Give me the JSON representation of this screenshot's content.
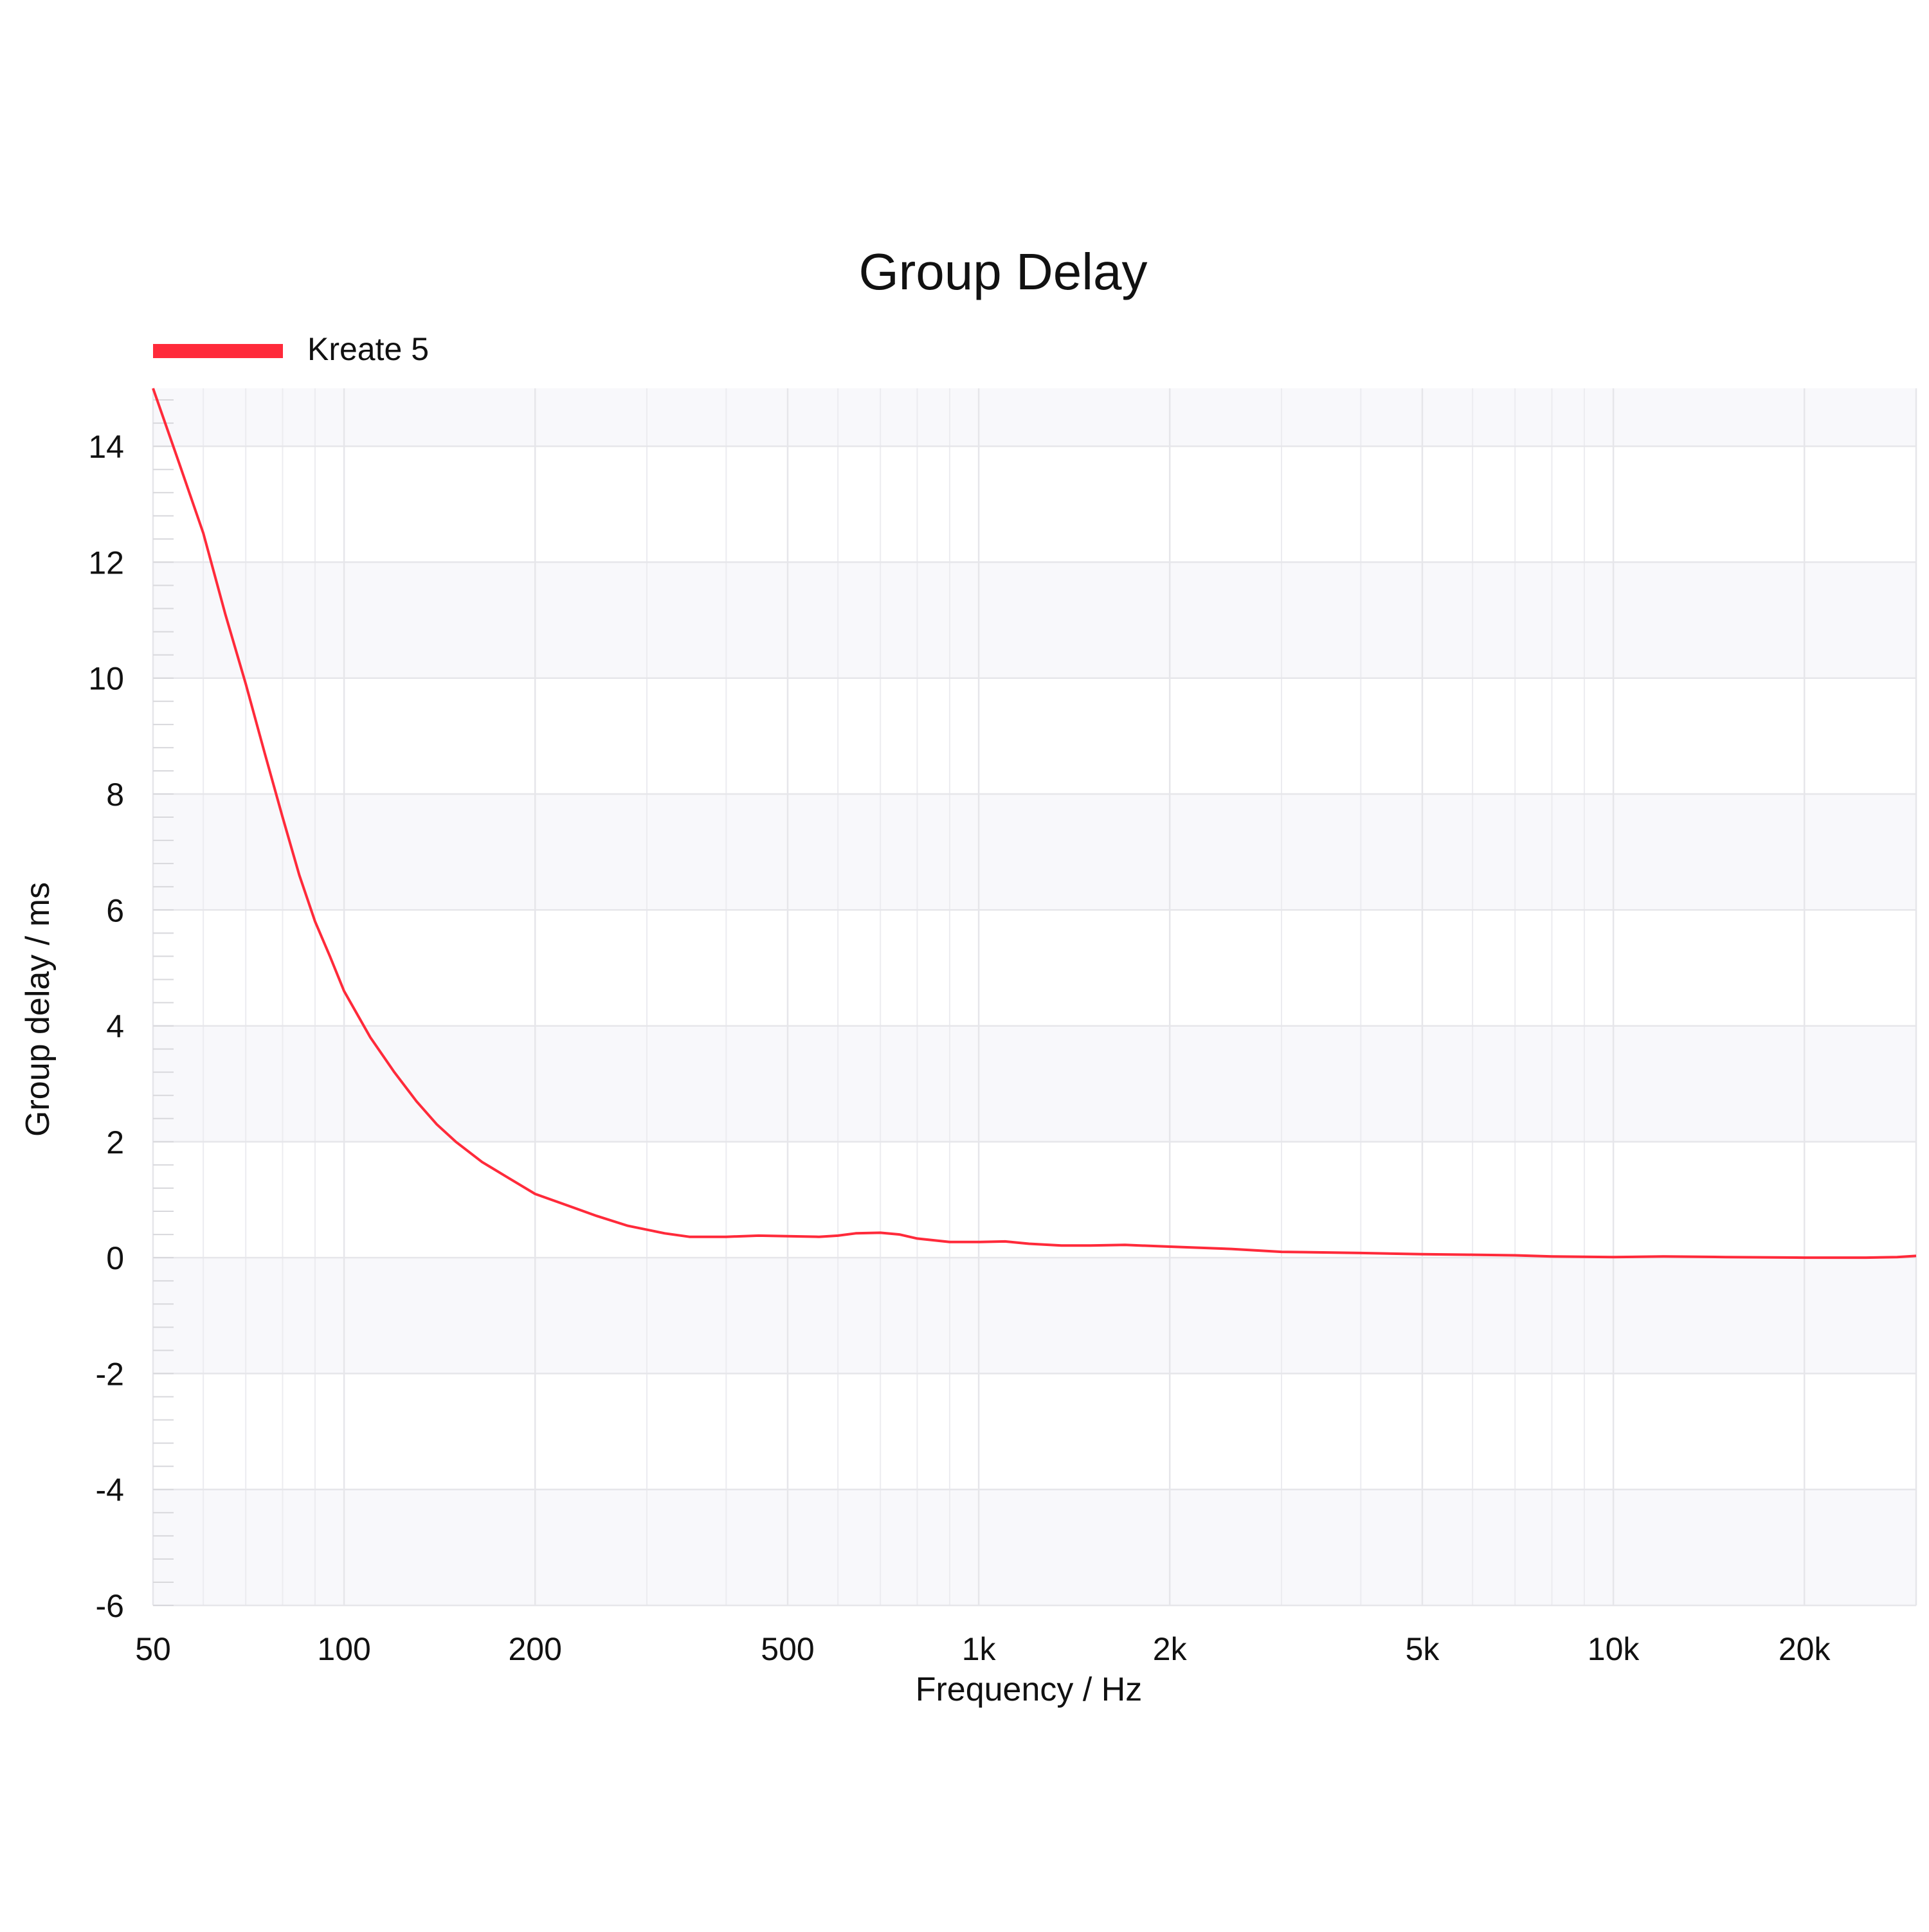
{
  "chart_data": {
    "type": "line",
    "title": "Group Delay",
    "xlabel": "Frequency / Hz",
    "ylabel": "Group delay / ms",
    "x_scale": "log",
    "xlim": [
      50,
      30000
    ],
    "ylim": [
      -6,
      15
    ],
    "x_ticks": [
      {
        "value": 50,
        "label": "50"
      },
      {
        "value": 100,
        "label": "100"
      },
      {
        "value": 200,
        "label": "200"
      },
      {
        "value": 500,
        "label": "500"
      },
      {
        "value": 1000,
        "label": "1k"
      },
      {
        "value": 2000,
        "label": "2k"
      },
      {
        "value": 5000,
        "label": "5k"
      },
      {
        "value": 10000,
        "label": "10k"
      },
      {
        "value": 20000,
        "label": "20k"
      }
    ],
    "y_ticks": [
      {
        "value": 14,
        "label": "14"
      },
      {
        "value": 12,
        "label": "12"
      },
      {
        "value": 10,
        "label": "10"
      },
      {
        "value": 8,
        "label": "8"
      },
      {
        "value": 6,
        "label": "6"
      },
      {
        "value": 4,
        "label": "4"
      },
      {
        "value": 2,
        "label": "2"
      },
      {
        "value": 0,
        "label": "0"
      },
      {
        "value": -2,
        "label": "-2"
      },
      {
        "value": -4,
        "label": "-4"
      },
      {
        "value": -6,
        "label": "-6"
      }
    ],
    "grid": true,
    "legend_position": "top-left",
    "series": [
      {
        "name": "Kreate 5",
        "color": "#ff2a3a",
        "points": [
          [
            50,
            15.0
          ],
          [
            55,
            13.7
          ],
          [
            60,
            12.5
          ],
          [
            65,
            11.1
          ],
          [
            70,
            9.9
          ],
          [
            75,
            8.7
          ],
          [
            80,
            7.6
          ],
          [
            85,
            6.6
          ],
          [
            90,
            5.8
          ],
          [
            95,
            5.2
          ],
          [
            100,
            4.6
          ],
          [
            110,
            3.8
          ],
          [
            120,
            3.2
          ],
          [
            130,
            2.7
          ],
          [
            140,
            2.3
          ],
          [
            150,
            2.0
          ],
          [
            165,
            1.65
          ],
          [
            180,
            1.4
          ],
          [
            200,
            1.1
          ],
          [
            225,
            0.9
          ],
          [
            250,
            0.72
          ],
          [
            280,
            0.55
          ],
          [
            320,
            0.42
          ],
          [
            350,
            0.36
          ],
          [
            400,
            0.36
          ],
          [
            450,
            0.38
          ],
          [
            500,
            0.37
          ],
          [
            560,
            0.36
          ],
          [
            600,
            0.38
          ],
          [
            640,
            0.42
          ],
          [
            700,
            0.43
          ],
          [
            750,
            0.4
          ],
          [
            800,
            0.33
          ],
          [
            900,
            0.27
          ],
          [
            1000,
            0.27
          ],
          [
            1100,
            0.28
          ],
          [
            1200,
            0.24
          ],
          [
            1350,
            0.21
          ],
          [
            1500,
            0.21
          ],
          [
            1700,
            0.22
          ],
          [
            2000,
            0.19
          ],
          [
            2500,
            0.15
          ],
          [
            3000,
            0.1
          ],
          [
            4000,
            0.08
          ],
          [
            5000,
            0.06
          ],
          [
            6000,
            0.05
          ],
          [
            7000,
            0.04
          ],
          [
            8000,
            0.02
          ],
          [
            10000,
            0.01
          ],
          [
            12000,
            0.02
          ],
          [
            15000,
            0.01
          ],
          [
            20000,
            0.0
          ],
          [
            25000,
            0.0
          ],
          [
            28000,
            0.01
          ],
          [
            30000,
            0.03
          ]
        ]
      }
    ],
    "colors": {
      "band": "#f8f8fb",
      "grid": "#e6e6ea",
      "minor_grid": "#ececf0",
      "tick_mark": "#d8d8dc"
    }
  }
}
